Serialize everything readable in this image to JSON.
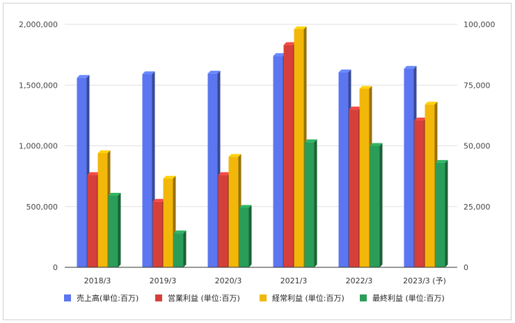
{
  "chart_data": {
    "type": "bar",
    "categories": [
      "2018/3",
      "2019/3",
      "2020/3",
      "2021/3",
      "2022/3",
      "2023/3 (予)"
    ],
    "series": [
      {
        "name": "売上高(単位:百万)",
        "axis": "left",
        "color": "#5B76F0",
        "values": [
          1560000,
          1590000,
          1595000,
          1740000,
          1605000,
          1635000
        ]
      },
      {
        "name": "営業利益 (単位:百万)",
        "axis": "right",
        "color": "#D6403A",
        "values": [
          38000,
          27000,
          38000,
          91500,
          65000,
          60500
        ]
      },
      {
        "name": "経常利益 (単位:百万)",
        "axis": "right",
        "color": "#F2B709",
        "values": [
          47000,
          36500,
          45500,
          98000,
          73500,
          67000
        ]
      },
      {
        "name": "最終利益 (単位:百万)",
        "axis": "right",
        "color": "#2A9D58",
        "values": [
          29500,
          14000,
          24500,
          51500,
          50000,
          43000
        ]
      }
    ],
    "y_left": {
      "min": 0,
      "max": 2000000,
      "ticks": [
        "0",
        "500,000",
        "1,000,000",
        "1,500,000",
        "2,000,000"
      ]
    },
    "y_right": {
      "min": 0,
      "max": 100000,
      "ticks": [
        "0",
        "25,000",
        "50,000",
        "75,000",
        "100,000"
      ]
    },
    "grid": true,
    "legend_position": "bottom",
    "style": "3d-bar"
  }
}
